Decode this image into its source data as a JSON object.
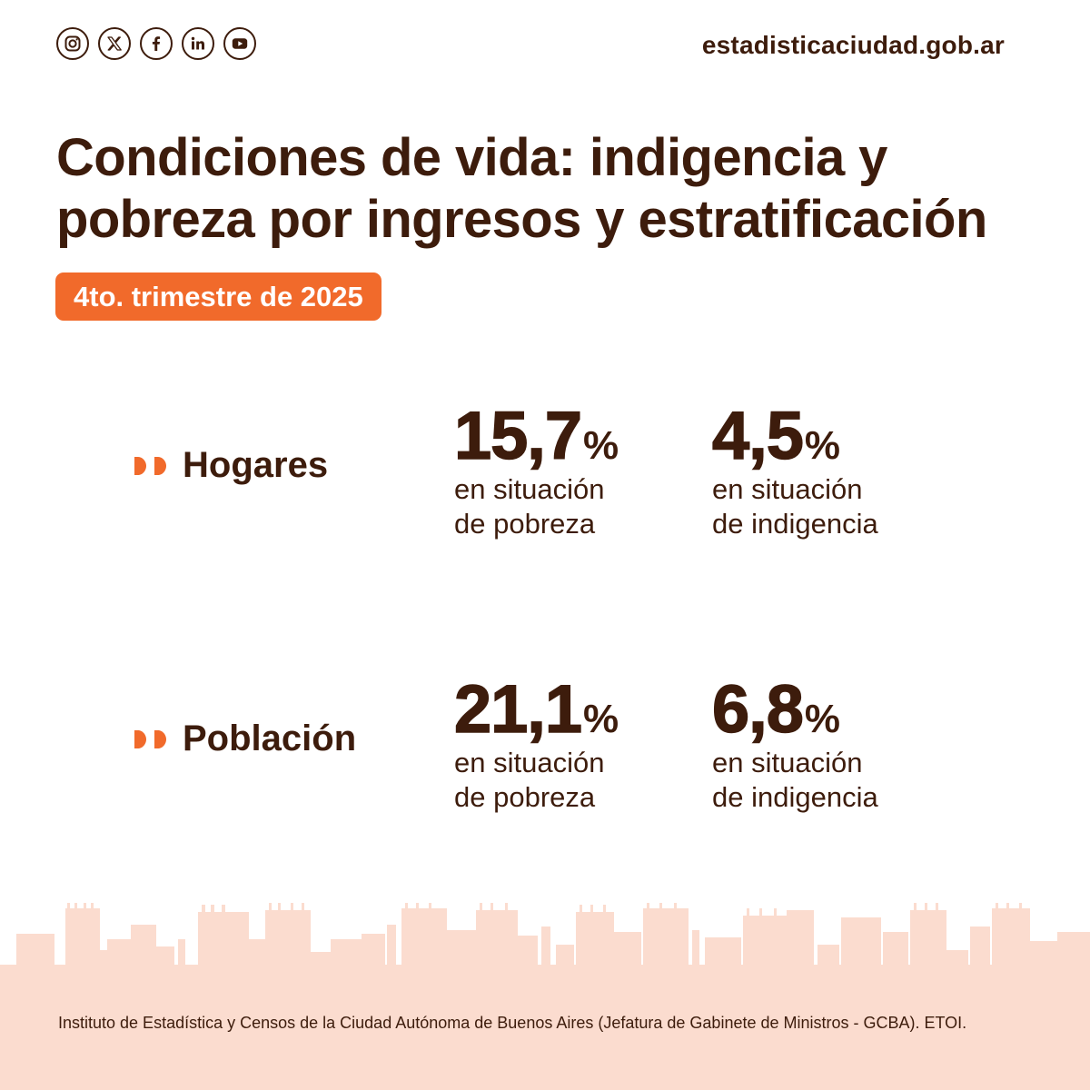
{
  "header": {
    "social_icons": [
      "instagram-icon",
      "x-icon",
      "facebook-icon",
      "linkedin-icon",
      "youtube-icon"
    ],
    "site": "estadisticaciudad.gob.ar"
  },
  "title": {
    "line1": "Condiciones de vida: indigencia y",
    "line2": "pobreza por ingresos y estratificación"
  },
  "badge": "4to. trimestre de 2025",
  "rows": [
    {
      "label": "Hogares",
      "stats": [
        {
          "value": "15,7",
          "unit": "%",
          "line1": "en situación",
          "line2": "de pobreza"
        },
        {
          "value": "4,5",
          "unit": "%",
          "line1": "en situación",
          "line2": "de indigencia"
        }
      ]
    },
    {
      "label": "Población",
      "stats": [
        {
          "value": "21,1",
          "unit": "%",
          "line1": "en situación",
          "line2": "de pobreza"
        },
        {
          "value": "6,8",
          "unit": "%",
          "line1": "en situación",
          "line2": "de indigencia"
        }
      ]
    }
  ],
  "source": "Instituto de Estadística y Censos de la Ciudad Autónoma de Buenos Aires (Jefatura de Gabinete de Ministros - GCBA). ETOI.",
  "colors": {
    "text": "#3d1c0c",
    "accent": "#f16a2b",
    "skyline": "#fbdccf",
    "background": "#ffffff"
  }
}
